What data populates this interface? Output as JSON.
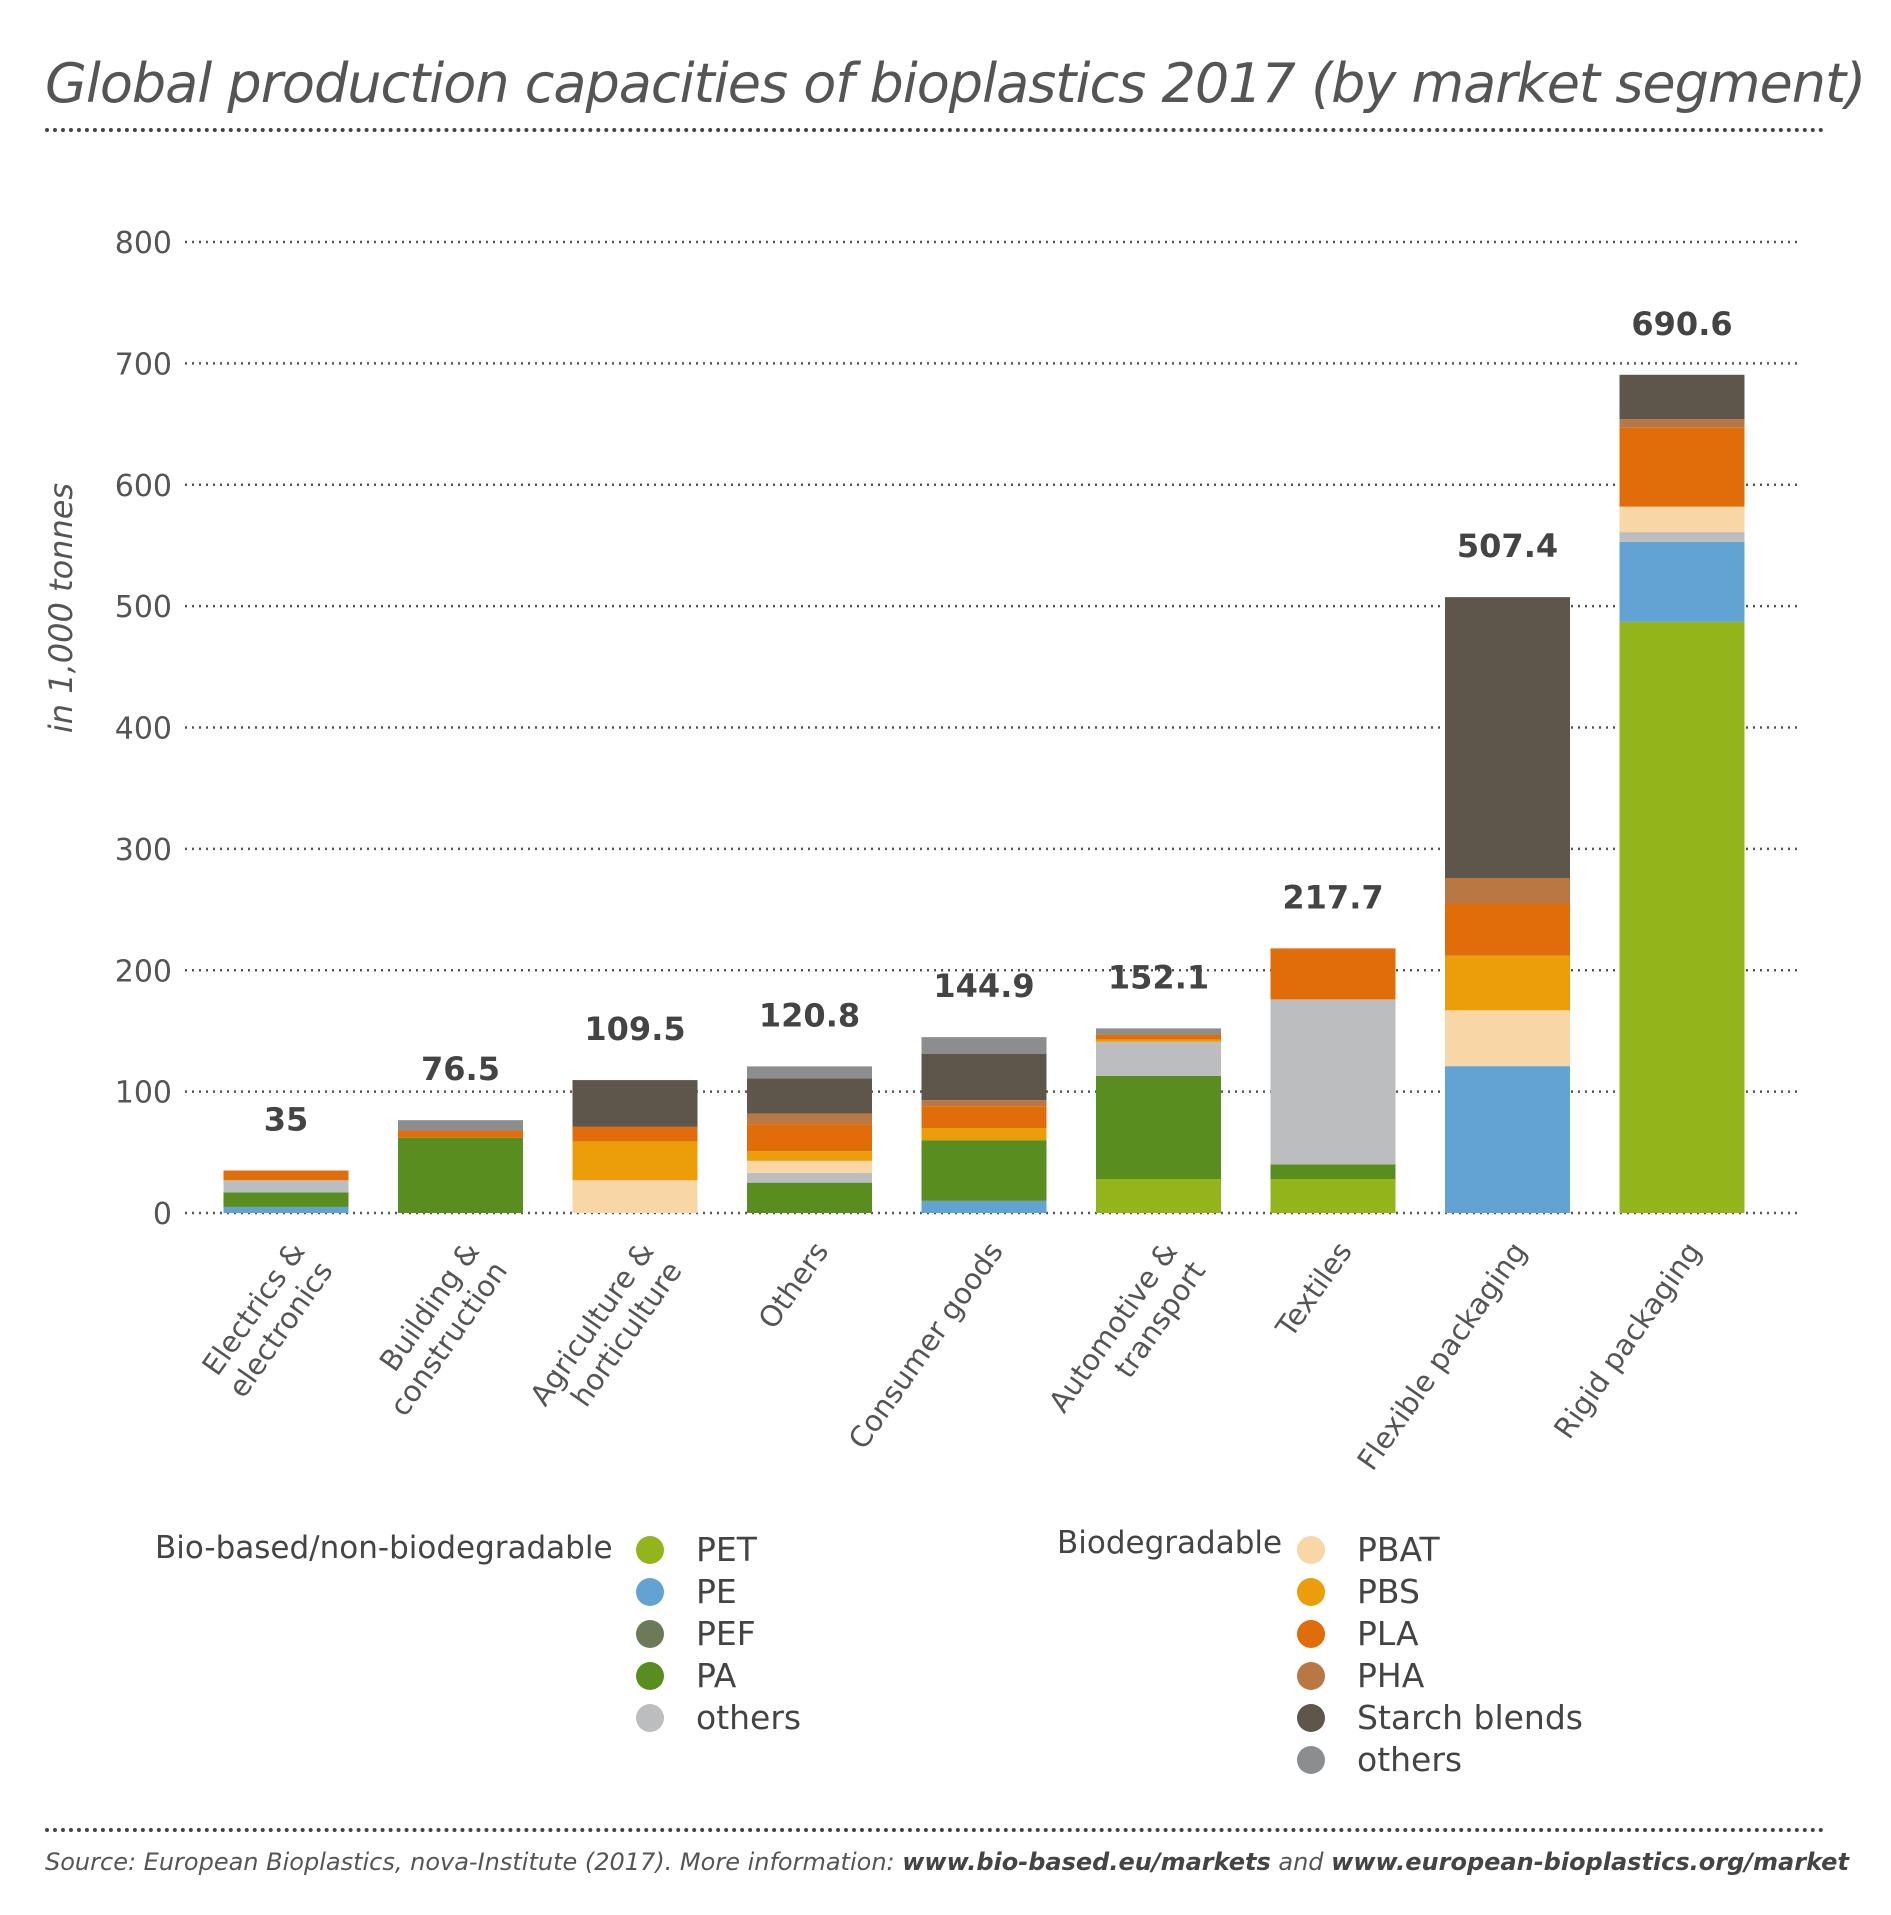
{
  "title": "Global production capacities of bioplastics 2017 (by market segment)",
  "colors": {
    "PET": "#93b51b",
    "PE": "#62a3d4",
    "PEF": "#6c7a57",
    "PA": "#5a8d20",
    "others_biobased": "#bcbdbe",
    "PBAT": "#f8d6a6",
    "PBS": "#eb9d0a",
    "PLA": "#e06c0a",
    "PHA": "#b97843",
    "Starch blends": "#5e554b",
    "others_biodegradable": "#8c8d8e"
  },
  "legend": {
    "biobased_title": "Bio-based/non-biodegradable",
    "biodegradable_title": "Biodegradable",
    "biobased_items": [
      {
        "label": "PET",
        "key": "PET"
      },
      {
        "label": "PE",
        "key": "PE"
      },
      {
        "label": "PEF",
        "key": "PEF"
      },
      {
        "label": "PA",
        "key": "PA"
      },
      {
        "label": "others",
        "key": "others_biobased"
      }
    ],
    "biodegradable_items": [
      {
        "label": "PBAT",
        "key": "PBAT"
      },
      {
        "label": "PBS",
        "key": "PBS"
      },
      {
        "label": "PLA",
        "key": "PLA"
      },
      {
        "label": "PHA",
        "key": "PHA"
      },
      {
        "label": "Starch blends",
        "key": "Starch blends"
      },
      {
        "label": "others",
        "key": "others_biodegradable"
      }
    ]
  },
  "source": {
    "prefix": "Source: European Bioplastics, nova-Institute (2017). More information: ",
    "link1": "www.bio-based.eu/markets",
    "middle": " and ",
    "link2": "www.european-bioplastics.org/market"
  },
  "chart_data": {
    "type": "bar",
    "stacked": true,
    "ylabel": "in 1,000 tonnes",
    "ylim": [
      0,
      800
    ],
    "yticks": [
      0,
      100,
      200,
      300,
      400,
      500,
      600,
      700,
      800
    ],
    "categories": [
      {
        "lines": [
          "Electrics &",
          "electronics"
        ]
      },
      {
        "lines": [
          "Building &",
          "construction"
        ]
      },
      {
        "lines": [
          "Agriculture &",
          "horticulture"
        ]
      },
      {
        "lines": [
          "Others"
        ]
      },
      {
        "lines": [
          "Consumer goods"
        ]
      },
      {
        "lines": [
          "Automotive &",
          "transport"
        ]
      },
      {
        "lines": [
          "Textiles"
        ]
      },
      {
        "lines": [
          "Flexible packaging"
        ]
      },
      {
        "lines": [
          "Rigid packaging"
        ]
      }
    ],
    "totals": [
      "35",
      "76.5",
      "109.5",
      "120.8",
      "144.9",
      "152.1",
      "217.7",
      "507.4",
      "690.6"
    ],
    "series": [
      {
        "name": "PET",
        "values": [
          0,
          0,
          0,
          0,
          0,
          28,
          28,
          0,
          487
        ]
      },
      {
        "name": "PE",
        "values": [
          5,
          0,
          0,
          0,
          10,
          0,
          0,
          121,
          66
        ]
      },
      {
        "name": "PEF",
        "values": [
          0,
          0,
          0,
          0,
          0,
          0,
          0,
          0,
          0
        ]
      },
      {
        "name": "PA",
        "values": [
          12,
          62,
          0,
          25,
          50,
          85,
          12,
          0,
          0
        ]
      },
      {
        "name": "others_biobased",
        "values": [
          10,
          0,
          0,
          8,
          0,
          28,
          136,
          0,
          8
        ]
      },
      {
        "name": "PBAT",
        "values": [
          0,
          0,
          27,
          10,
          0,
          0,
          0,
          46,
          21
        ]
      },
      {
        "name": "PBS",
        "values": [
          0,
          0,
          32,
          8,
          10,
          2,
          0,
          45,
          0
        ]
      },
      {
        "name": "PLA",
        "values": [
          8,
          6,
          12,
          22,
          18,
          4,
          42,
          43,
          65
        ]
      },
      {
        "name": "PHA",
        "values": [
          0,
          0,
          0,
          9,
          5,
          0,
          0,
          21,
          7
        ]
      },
      {
        "name": "Starch blends",
        "values": [
          0,
          0,
          38.5,
          29,
          38,
          0,
          0,
          231.4,
          36.6
        ]
      },
      {
        "name": "others_biodegradable",
        "values": [
          0,
          8.5,
          0,
          9.8,
          13.9,
          5.1,
          0,
          0,
          0
        ]
      }
    ]
  }
}
